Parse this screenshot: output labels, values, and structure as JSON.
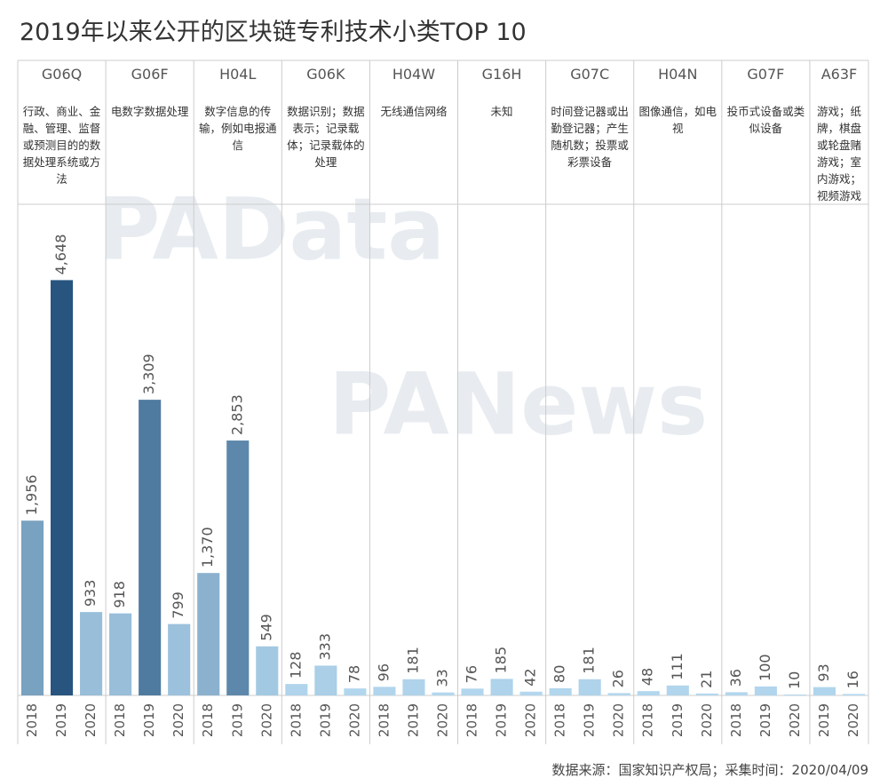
{
  "chart_data": {
    "type": "bar",
    "title": "2019年以来公开的区块链专利技术小类TOP 10",
    "source": "数据来源：国家知识产权局；采集时间：2020/04/09",
    "watermarks": [
      "PAData",
      "PANews"
    ],
    "ylim": [
      0,
      5000
    ],
    "color_range": [
      "#b4d8ef",
      "#1d4b77"
    ],
    "panels": [
      {
        "name": "G06Q",
        "description": "行政、商业、金融、管理、监督或预测目的的数据处理系统或方法",
        "categories": [
          "2018",
          "2019",
          "2020"
        ],
        "values": [
          1956,
          4648,
          933
        ],
        "value_labels": [
          "1,956",
          "4,648",
          "933"
        ]
      },
      {
        "name": "G06F",
        "description": "电数字数据处理",
        "categories": [
          "2018",
          "2019",
          "2020"
        ],
        "values": [
          918,
          3309,
          799
        ],
        "value_labels": [
          "918",
          "3,309",
          "799"
        ]
      },
      {
        "name": "H04L",
        "description": "数字信息的传输，例如电报通信",
        "categories": [
          "2018",
          "2019",
          "2020"
        ],
        "values": [
          1370,
          2853,
          549
        ],
        "value_labels": [
          "1,370",
          "2,853",
          "549"
        ]
      },
      {
        "name": "G06K",
        "description": "数据识别；数据表示；记录载体；记录载体的处理",
        "categories": [
          "2018",
          "2019",
          "2020"
        ],
        "values": [
          128,
          333,
          78
        ],
        "value_labels": [
          "128",
          "333",
          "78"
        ]
      },
      {
        "name": "H04W",
        "description": "无线通信网络",
        "categories": [
          "2018",
          "2019",
          "2020"
        ],
        "values": [
          96,
          181,
          33
        ],
        "value_labels": [
          "96",
          "181",
          "33"
        ]
      },
      {
        "name": "G16H",
        "description": "未知",
        "categories": [
          "2018",
          "2019",
          "2020"
        ],
        "values": [
          76,
          185,
          42
        ],
        "value_labels": [
          "76",
          "185",
          "42"
        ]
      },
      {
        "name": "G07C",
        "description": "时间登记器或出勤登记器；产生随机数；投票或彩票设备",
        "categories": [
          "2018",
          "2019",
          "2020"
        ],
        "values": [
          80,
          181,
          26
        ],
        "value_labels": [
          "80",
          "181",
          "26"
        ]
      },
      {
        "name": "H04N",
        "description": "图像通信，如电视",
        "categories": [
          "2018",
          "2019",
          "2020"
        ],
        "values": [
          48,
          111,
          21
        ],
        "value_labels": [
          "48",
          "111",
          "21"
        ]
      },
      {
        "name": "G07F",
        "description": "投币式设备或类似设备",
        "categories": [
          "2018",
          "2019",
          "2020"
        ],
        "values": [
          36,
          100,
          10
        ],
        "value_labels": [
          "36",
          "100",
          "10"
        ]
      },
      {
        "name": "A63F",
        "description": "游戏；纸牌，棋盘或轮盘赌游戏；室内游戏；视频游戏",
        "categories": [
          "2019",
          "2020"
        ],
        "values": [
          93,
          16
        ],
        "value_labels": [
          "93",
          "16"
        ]
      }
    ]
  }
}
